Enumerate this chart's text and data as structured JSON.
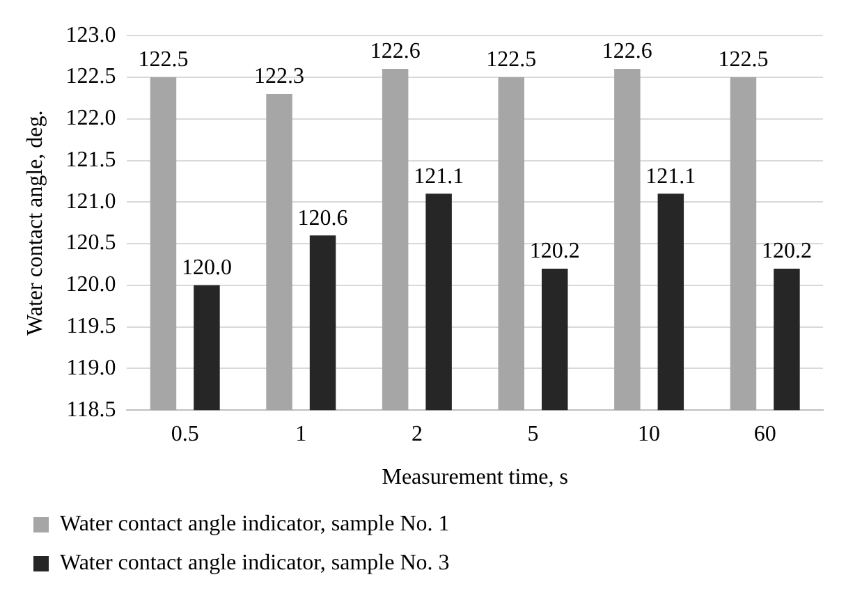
{
  "chart_data": {
    "type": "bar",
    "xlabel": "Measurement time, s",
    "ylabel": "Water contact angle, deg.",
    "categories": [
      "0.5",
      "1",
      "2",
      "5",
      "10",
      "60"
    ],
    "series": [
      {
        "name": "Water contact angle indicator, sample No. 1",
        "color": "#a6a6a6",
        "values": [
          122.5,
          122.3,
          122.6,
          122.5,
          122.6,
          122.5
        ],
        "value_labels": [
          "122.5",
          "122.3",
          "122.6",
          "122.5",
          "122.6",
          "122.5"
        ]
      },
      {
        "name": "Water contact angle indicator, sample No. 3",
        "color": "#262626",
        "values": [
          120.0,
          120.6,
          121.1,
          120.2,
          121.1,
          120.2
        ],
        "value_labels": [
          "120.0",
          "120.6",
          "121.1",
          "120.2",
          "121.1",
          "120.2"
        ]
      }
    ],
    "ylim": [
      118.5,
      123.0
    ],
    "yticks": [
      {
        "value": 118.5,
        "label": "118.5"
      },
      {
        "value": 119,
        "label": "119.0"
      },
      {
        "value": 119.5,
        "label": "119.5"
      },
      {
        "value": 120,
        "label": "120.0"
      },
      {
        "value": 120.5,
        "label": "120.5"
      },
      {
        "value": 121,
        "label": "121.0"
      },
      {
        "value": 121.5,
        "label": "121.5"
      },
      {
        "value": 122,
        "label": "122.0"
      },
      {
        "value": 122.5,
        "label": "122.5"
      },
      {
        "value": 123,
        "label": "123.0"
      }
    ],
    "grid": "y",
    "legend": "bottom"
  }
}
